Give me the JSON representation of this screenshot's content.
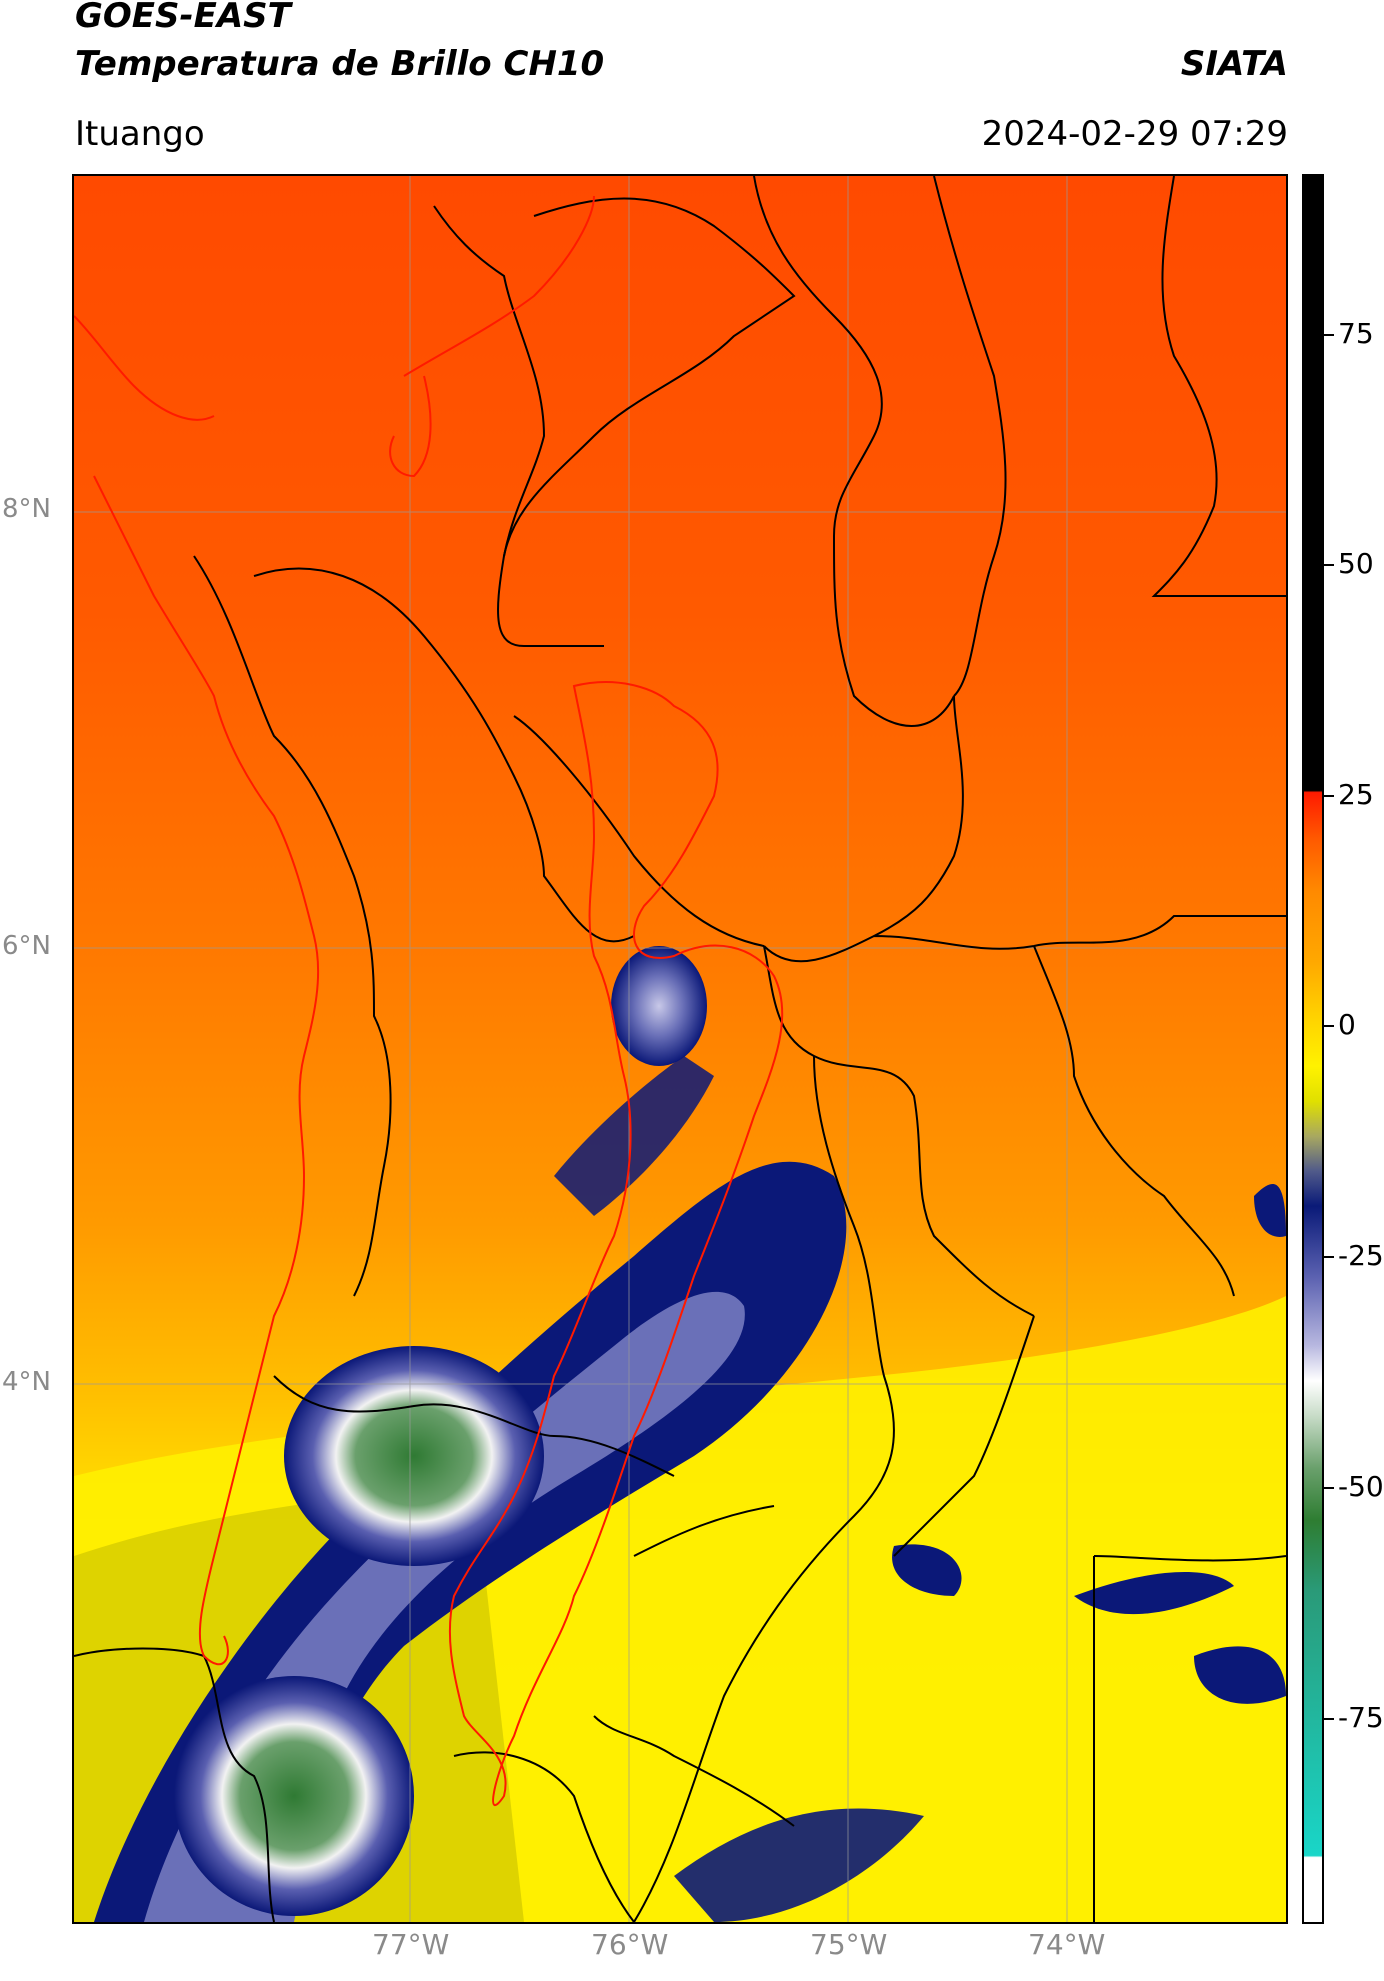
{
  "header": {
    "satellite": "GOES-EAST",
    "product": "Temperatura de Brillo CH10",
    "organization": "SIATA",
    "location": "Ituango",
    "timestamp": "2024-02-29 07:29"
  },
  "map": {
    "lat_labels": [
      "8°N",
      "6°N",
      "4°N"
    ],
    "lon_labels": [
      "77°W",
      "76°W",
      "75°W",
      "74°W"
    ]
  },
  "colorbar": {
    "tick_labels": [
      "75",
      "50",
      "25",
      "0",
      "-25",
      "-50",
      "-75"
    ],
    "colors": {
      "black": "#000000",
      "red": "#ff1a00",
      "orange": "#ff8a00",
      "yellow": "#fff200",
      "navy": "#0a1a78",
      "white": "#ffffff",
      "green": "#2e7d32",
      "cyan": "#19d6c8"
    }
  }
}
